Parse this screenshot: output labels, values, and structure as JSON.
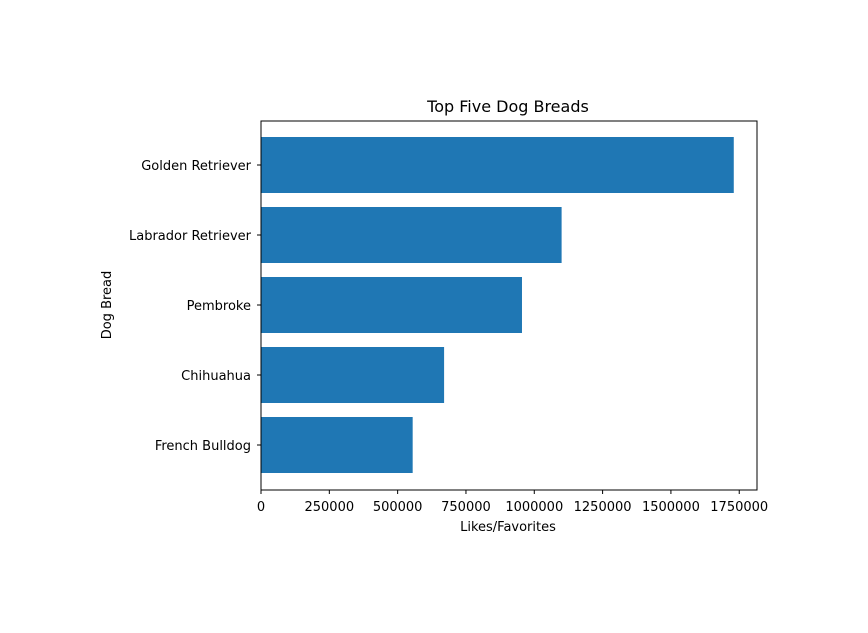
{
  "chart_data": {
    "type": "bar",
    "orientation": "horizontal",
    "title": "Top Five Dog Breads",
    "xlabel": "Likes/Favorites",
    "ylabel": "Dog Bread",
    "categories": [
      "French Bulldog",
      "Chihuahua",
      "Pembroke",
      "Labrador Retriever",
      "Golden Retriever"
    ],
    "values": [
      555000,
      670000,
      955000,
      1100000,
      1730000
    ],
    "xlim": [
      0,
      1815000
    ],
    "xticks": [
      0,
      250000,
      500000,
      750000,
      1000000,
      1250000,
      1500000,
      1750000
    ],
    "xtick_labels": [
      "0",
      "250000",
      "500000",
      "750000",
      "1000000",
      "1250000",
      "1500000",
      "1750000"
    ],
    "bar_color": "#1f77b4",
    "grid": false,
    "legend": false
  }
}
